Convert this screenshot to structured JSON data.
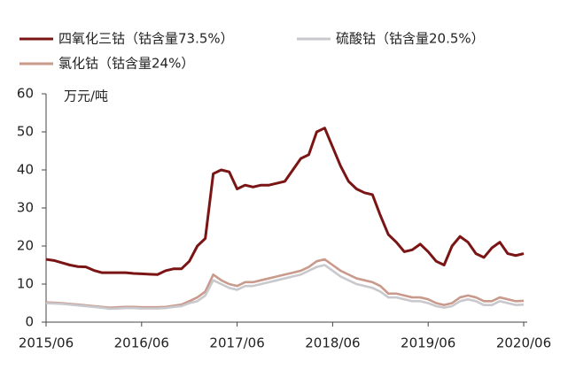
{
  "chart_data": {
    "type": "line",
    "y_axis_label": "万元/吨",
    "categories": [
      "2015/06",
      null,
      null,
      null,
      null,
      null,
      null,
      null,
      null,
      null,
      null,
      null,
      "2016/06",
      null,
      null,
      null,
      null,
      null,
      null,
      null,
      null,
      null,
      null,
      null,
      "2017/06",
      null,
      null,
      null,
      null,
      null,
      null,
      null,
      null,
      null,
      null,
      null,
      "2018/06",
      null,
      null,
      null,
      null,
      null,
      null,
      null,
      null,
      null,
      null,
      null,
      "2019/06",
      null,
      null,
      null,
      null,
      null,
      null,
      null,
      null,
      null,
      null,
      null,
      "2020/06"
    ],
    "series": [
      {
        "name": "四氧化三钴（钴含量73.5%）",
        "color": "#7b1515",
        "values": [
          16.5,
          16.2,
          15.6,
          15,
          14.6,
          14.5,
          13.6,
          13,
          13,
          13,
          13,
          12.8,
          12.7,
          12.6,
          12.5,
          13.5,
          14,
          14,
          16,
          20,
          22,
          39,
          40,
          39.5,
          35,
          36,
          35.5,
          36,
          36,
          36.5,
          37,
          40,
          43,
          44,
          50,
          51,
          46,
          41,
          37,
          35,
          34,
          33.5,
          28,
          23,
          21,
          18.5,
          19,
          20.5,
          18.5,
          16,
          15,
          20,
          22.5,
          21,
          18,
          17,
          19.5,
          21,
          18,
          17.5,
          18
        ]
      },
      {
        "name": "硫酸钴（钴含量20.5%）",
        "color": "#c9c9cd",
        "values": [
          5,
          4.9,
          4.8,
          4.6,
          4.4,
          4.2,
          4,
          3.8,
          3.5,
          3.6,
          3.7,
          3.7,
          3.6,
          3.6,
          3.6,
          3.7,
          4,
          4.2,
          5,
          5.5,
          7,
          11,
          10,
          9,
          8.5,
          9.5,
          9.5,
          10,
          10.5,
          11,
          11.5,
          12,
          12.5,
          13.5,
          14.5,
          15,
          13.5,
          12,
          11,
          10,
          9.5,
          9,
          8,
          6.5,
          6.5,
          6,
          5.5,
          5.5,
          5,
          4.2,
          3.8,
          4.2,
          5.5,
          6,
          5.5,
          4.5,
          4.5,
          5.5,
          5,
          4.5,
          4.6
        ]
      },
      {
        "name": "氯化钴（钴含量24%）",
        "color": "#c99a8c",
        "values": [
          5.2,
          5.1,
          5,
          4.8,
          4.6,
          4.4,
          4.2,
          4,
          3.8,
          3.9,
          4,
          4,
          3.9,
          3.9,
          3.9,
          4,
          4.3,
          4.6,
          5.5,
          6.5,
          8,
          12.5,
          11,
          10,
          9.5,
          10.5,
          10.5,
          11,
          11.5,
          12,
          12.5,
          13,
          13.5,
          14.5,
          16,
          16.5,
          15,
          13.5,
          12.5,
          11.5,
          11,
          10.5,
          9.5,
          7.5,
          7.5,
          7,
          6.5,
          6.5,
          6,
          5,
          4.5,
          5,
          6.5,
          7,
          6.5,
          5.5,
          5.5,
          6.5,
          6,
          5.5,
          5.6
        ]
      }
    ],
    "ylim": [
      0,
      60
    ],
    "yticks": [
      0,
      10,
      20,
      30,
      40,
      50,
      60
    ],
    "grid": false
  }
}
